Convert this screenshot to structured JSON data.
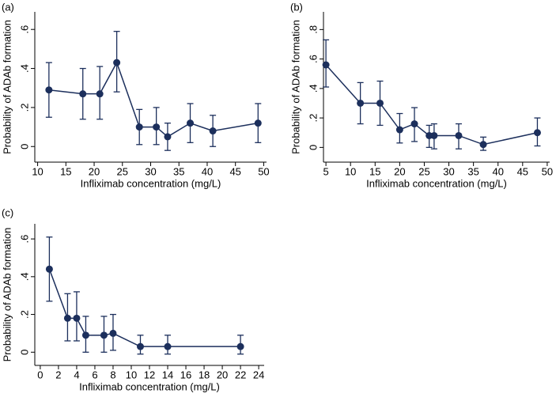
{
  "chart_data": [
    {
      "type": "line",
      "label": "(a)",
      "xlabel": "Infliximab concentration (mg/L)",
      "ylabel": "Probability of ADAb formation",
      "color": "#1c2f5c",
      "x": [
        12,
        18,
        21,
        24,
        28,
        31,
        33,
        37,
        41,
        49
      ],
      "values": [
        0.29,
        0.27,
        0.27,
        0.43,
        0.1,
        0.1,
        0.05,
        0.12,
        0.08,
        0.12
      ],
      "lower": [
        0.15,
        0.14,
        0.14,
        0.28,
        0.01,
        0.01,
        -0.02,
        0.02,
        0.0,
        0.02
      ],
      "upper": [
        0.43,
        0.4,
        0.41,
        0.59,
        0.19,
        0.2,
        0.12,
        0.22,
        0.16,
        0.22
      ],
      "xlim": [
        9.5,
        50.5
      ],
      "ylim": [
        -0.08,
        0.69
      ],
      "xticks": [
        10,
        15,
        20,
        25,
        30,
        35,
        40,
        45,
        50
      ],
      "yticks": [
        0,
        {
          "value": 0.2,
          "label": ".2"
        },
        {
          "value": 0.4,
          "label": ".4"
        },
        {
          "value": 0.6,
          "label": ".6"
        }
      ]
    },
    {
      "type": "line",
      "label": "(b)",
      "xlabel": "Infliximab concentration (mg/L)",
      "ylabel": "Probability of ADAb formation",
      "color": "#1c2f5c",
      "x": [
        5,
        12,
        16,
        20,
        23,
        26,
        27,
        32,
        37,
        48
      ],
      "values": [
        0.56,
        0.3,
        0.3,
        0.12,
        0.16,
        0.08,
        0.08,
        0.08,
        0.02,
        0.1
      ],
      "lower": [
        0.41,
        0.16,
        0.15,
        0.03,
        0.04,
        0.0,
        -0.01,
        -0.01,
        -0.02,
        0.01
      ],
      "upper": [
        0.73,
        0.44,
        0.45,
        0.23,
        0.27,
        0.15,
        0.16,
        0.16,
        0.07,
        0.2
      ],
      "xlim": [
        4.5,
        50.5
      ],
      "ylim": [
        -0.1,
        0.92
      ],
      "xticks": [
        5,
        10,
        15,
        20,
        25,
        30,
        35,
        40,
        45,
        50
      ],
      "yticks": [
        0,
        {
          "value": 0.2,
          "label": ".2"
        },
        {
          "value": 0.4,
          "label": ".4"
        },
        {
          "value": 0.6,
          "label": ".6"
        },
        {
          "value": 0.8,
          "label": ".8"
        }
      ]
    },
    {
      "type": "line",
      "label": "(c)",
      "xlabel": "Infliximab concentration (mg/L)",
      "ylabel": "Probability of ADAb formation",
      "color": "#1c2f5c",
      "x": [
        1,
        3,
        4,
        5,
        7,
        8,
        11,
        14,
        22
      ],
      "values": [
        0.44,
        0.18,
        0.18,
        0.09,
        0.09,
        0.1,
        0.03,
        0.03,
        0.03
      ],
      "lower": [
        0.27,
        0.06,
        0.06,
        0.0,
        0.0,
        0.01,
        -0.01,
        -0.01,
        -0.01
      ],
      "upper": [
        0.61,
        0.31,
        0.32,
        0.19,
        0.19,
        0.2,
        0.09,
        0.09,
        0.09
      ],
      "xlim": [
        -0.6,
        24.6
      ],
      "ylim": [
        -0.07,
        0.68
      ],
      "xticks": [
        0,
        2,
        4,
        6,
        8,
        10,
        12,
        14,
        16,
        18,
        20,
        22,
        24
      ],
      "yticks": [
        0,
        {
          "value": 0.2,
          "label": ".2"
        },
        {
          "value": 0.4,
          "label": ".4"
        },
        {
          "value": 0.6,
          "label": ".6"
        }
      ]
    }
  ]
}
